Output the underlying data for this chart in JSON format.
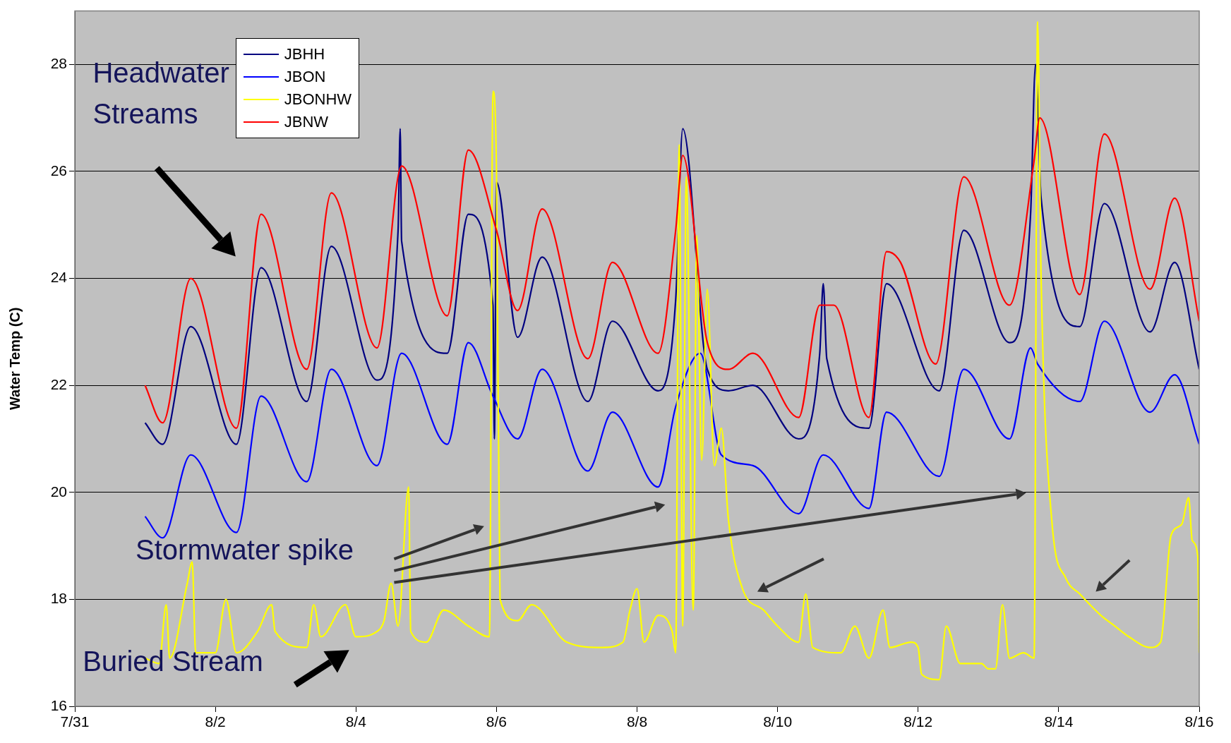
{
  "chart_data": {
    "type": "line",
    "ylabel": "Water Temp (C)",
    "xlim": [
      "--07-31",
      "--08-16"
    ],
    "xticks": [
      {
        "value": "--07-31",
        "label": "7/31"
      },
      {
        "value": "--08-02",
        "label": "8/2"
      },
      {
        "value": "--08-04",
        "label": "8/4"
      },
      {
        "value": "--08-06",
        "label": "8/6"
      },
      {
        "value": "--08-08",
        "label": "8/8"
      },
      {
        "value": "--08-10",
        "label": "8/10"
      },
      {
        "value": "--08-12",
        "label": "8/12"
      },
      {
        "value": "--08-14",
        "label": "8/14"
      },
      {
        "value": "--08-16",
        "label": "8/16"
      }
    ],
    "ylim": [
      16,
      29
    ],
    "yticks": [
      16,
      18,
      20,
      22,
      24,
      26,
      28
    ],
    "grid": "y",
    "legend": "top left",
    "marker": "none",
    "annotations": [
      "Headwater Streams",
      "Stormwater spike",
      "Buried Stream"
    ],
    "series": [
      {
        "name": "JBHH",
        "color": "#000080",
        "x": [
          "--08-01T00:00",
          "--08-01T06:00",
          "--08-01T15:36",
          "--08-02T07:12",
          "--08-02T15:36",
          "--08-03T07:12",
          "--08-03T15:36",
          "--08-04T07:12",
          "--08-04T14:24",
          "--08-04T15:07",
          "--08-04T15:36",
          "--08-05T07:12",
          "--08-05T14:24",
          "--08-05T22:48",
          "--08-05T23:17",
          "--08-06T00:00",
          "--08-06T07:12",
          "--08-06T15:36",
          "--08-07T07:12",
          "--08-07T15:36",
          "--08-08T07:12",
          "--08-08T13:12",
          "--08-08T15:36",
          "--08-09T00:00",
          "--08-09T07:12",
          "--08-09T15:36",
          "--08-10T07:12",
          "--08-10T14:24",
          "--08-10T15:36",
          "--08-10T16:48",
          "--08-11T07:12",
          "--08-11T13:12",
          "--08-12T07:12",
          "--08-12T15:36",
          "--08-13T07:12",
          "--08-13T14:24",
          "--08-13T16:05",
          "--08-13T18:00",
          "--08-14T07:12",
          "--08-14T15:36",
          "--08-15T07:12",
          "--08-15T15:36",
          "--08-16T00:00"
        ],
        "values": [
          21.3,
          20.9,
          23.1,
          20.9,
          24.2,
          21.7,
          24.6,
          22.1,
          24.9,
          26.8,
          24.7,
          22.6,
          25.2,
          23.5,
          21.0,
          25.8,
          22.9,
          24.4,
          21.7,
          23.2,
          21.9,
          23.6,
          26.8,
          22.3,
          21.9,
          22.0,
          21.0,
          22.6,
          23.9,
          22.5,
          21.2,
          23.9,
          21.9,
          24.9,
          22.8,
          25.2,
          28.0,
          25.5,
          23.1,
          25.4,
          23.0,
          24.3,
          22.3
        ]
      },
      {
        "name": "JBON",
        "color": "#0000ff",
        "x": [
          "--08-01T00:00",
          "--08-01T06:00",
          "--08-01T15:36",
          "--08-02T07:12",
          "--08-02T15:36",
          "--08-03T07:12",
          "--08-03T15:36",
          "--08-04T07:12",
          "--08-04T15:36",
          "--08-05T07:12",
          "--08-05T14:24",
          "--08-05T22:48",
          "--08-06T07:12",
          "--08-06T15:36",
          "--08-07T07:12",
          "--08-07T15:36",
          "--08-08T07:12",
          "--08-08T13:12",
          "--08-08T21:36",
          "--08-09T04:48",
          "--08-09T15:36",
          "--08-10T07:12",
          "--08-10T15:36",
          "--08-11T07:12",
          "--08-11T13:12",
          "--08-12T07:12",
          "--08-12T15:36",
          "--08-13T07:12",
          "--08-13T14:24",
          "--08-13T16:48",
          "--08-14T07:12",
          "--08-14T15:36",
          "--08-15T07:12",
          "--08-15T15:36",
          "--08-16T00:00"
        ],
        "values": [
          19.55,
          19.15,
          20.7,
          19.25,
          21.8,
          20.2,
          22.3,
          20.5,
          22.6,
          20.9,
          22.8,
          21.8,
          21.0,
          22.3,
          20.4,
          21.5,
          20.1,
          21.6,
          22.6,
          20.7,
          20.5,
          19.6,
          20.7,
          19.7,
          21.5,
          20.3,
          22.3,
          21.0,
          22.7,
          22.4,
          21.7,
          23.2,
          21.5,
          22.2,
          20.9
        ]
      },
      {
        "name": "JBONHW",
        "color": "#ffff00",
        "x": [
          "--08-01T00:00",
          "--08-01T04:48",
          "--08-01T07:12",
          "--08-01T08:24",
          "--08-01T14:24",
          "--08-01T16:05",
          "--08-01T17:17",
          "--08-02T00:00",
          "--08-02T03:36",
          "--08-02T07:12",
          "--08-02T14:24",
          "--08-02T19:12",
          "--08-02T20:24",
          "--08-03T07:12",
          "--08-03T09:36",
          "--08-03T12:00",
          "--08-03T20:24",
          "--08-04T00:00",
          "--08-04T07:12",
          "--08-04T09:36",
          "--08-04T12:00",
          "--08-04T14:24",
          "--08-04T18:00",
          "--08-04T18:43",
          "--08-05T00:00",
          "--08-05T06:00",
          "--08-05T14:24",
          "--08-05T21:36",
          "--08-05T22:48",
          "--08-06T00:00",
          "--08-06T01:12",
          "--08-06T07:12",
          "--08-06T12:00",
          "--08-07T00:00",
          "--08-07T12:00",
          "--08-07T19:12",
          "--08-07T21:36",
          "--08-08T00:00",
          "--08-08T02:24",
          "--08-08T07:12",
          "--08-08T12:00",
          "--08-08T13:12",
          "--08-08T14:24",
          "--08-08T15:36",
          "--08-08T16:48",
          "--08-08T19:12",
          "--08-08T20:24",
          "--08-08T22:05",
          "--08-09T00:00",
          "--08-09T02:24",
          "--08-09T04:48",
          "--08-09T07:12",
          "--08-09T12:00",
          "--08-09T19:12",
          "--08-10T00:00",
          "--08-10T07:12",
          "--08-10T09:36",
          "--08-10T12:00",
          "--08-10T21:36",
          "--08-11T02:24",
          "--08-11T07:12",
          "--08-11T12:00",
          "--08-11T14:24",
          "--08-11T21:36",
          "--08-12T00:00",
          "--08-12T01:12",
          "--08-12T07:12",
          "--08-12T09:36",
          "--08-12T14:24",
          "--08-12T21:36",
          "--08-13T00:00",
          "--08-13T02:24",
          "--08-13T04:48",
          "--08-13T07:12",
          "--08-13T12:00",
          "--08-13T15:36",
          "--08-13T16:48",
          "--08-13T18:00",
          "--08-13T21:36",
          "--08-14T02:24",
          "--08-14T07:12",
          "--08-14T14:24",
          "--08-14T19:12",
          "--08-15T00:00",
          "--08-15T07:12",
          "--08-15T10:48",
          "--08-15T14:24",
          "--08-15T18:00",
          "--08-15T20:24",
          "--08-15T21:36",
          "--08-15T23:31",
          "--08-16T00:00"
        ],
        "values": [
          16.9,
          16.8,
          17.9,
          16.9,
          18.3,
          18.7,
          17.0,
          17.0,
          18.0,
          17.0,
          17.4,
          17.9,
          17.4,
          17.1,
          17.9,
          17.3,
          17.9,
          17.3,
          17.4,
          17.6,
          18.3,
          17.5,
          20.1,
          17.4,
          17.2,
          17.8,
          17.5,
          17.3,
          27.5,
          26.0,
          18.0,
          17.6,
          17.9,
          17.2,
          17.1,
          17.2,
          17.8,
          18.2,
          17.2,
          17.7,
          17.4,
          17.0,
          26.5,
          17.5,
          25.9,
          17.8,
          24.8,
          20.6,
          23.8,
          20.5,
          21.2,
          19.5,
          18.2,
          17.8,
          17.5,
          17.2,
          18.1,
          17.1,
          17.0,
          17.5,
          16.9,
          17.8,
          17.1,
          17.2,
          17.1,
          16.6,
          16.5,
          17.5,
          16.8,
          16.8,
          16.7,
          16.7,
          17.9,
          16.9,
          17.0,
          16.9,
          28.8,
          24.0,
          19.5,
          18.4,
          18.1,
          17.7,
          17.5,
          17.3,
          17.1,
          17.2,
          19.2,
          19.4,
          19.9,
          19.1,
          18.8,
          17.0
        ]
      },
      {
        "name": "JBNW",
        "color": "#ff0000",
        "x": [
          "--08-01T00:00",
          "--08-01T06:00",
          "--08-01T15:36",
          "--08-02T07:12",
          "--08-02T15:36",
          "--08-03T07:12",
          "--08-03T15:36",
          "--08-04T07:12",
          "--08-04T15:36",
          "--08-05T07:12",
          "--08-05T14:24",
          "--08-06T00:00",
          "--08-06T07:12",
          "--08-06T15:36",
          "--08-07T07:12",
          "--08-07T15:36",
          "--08-08T07:12",
          "--08-08T13:12",
          "--08-08T15:36",
          "--08-09T00:00",
          "--08-09T07:12",
          "--08-09T15:36",
          "--08-10T07:12",
          "--08-10T14:24",
          "--08-10T19:12",
          "--08-11T07:12",
          "--08-11T13:12",
          "--08-11T18:00",
          "--08-12T06:00",
          "--08-12T15:36",
          "--08-13T07:12",
          "--08-13T15:36",
          "--08-13T17:31",
          "--08-14T07:12",
          "--08-14T15:36",
          "--08-15T07:12",
          "--08-15T15:36",
          "--08-16T00:00"
        ],
        "values": [
          22.0,
          21.3,
          24.0,
          21.2,
          25.2,
          22.3,
          25.6,
          22.7,
          26.1,
          23.3,
          26.4,
          24.9,
          23.4,
          25.3,
          22.5,
          24.3,
          22.6,
          24.9,
          26.3,
          22.8,
          22.3,
          22.6,
          21.4,
          23.5,
          23.5,
          21.4,
          24.5,
          24.3,
          22.4,
          25.9,
          23.5,
          26.2,
          27.0,
          23.7,
          26.7,
          23.8,
          25.5,
          23.2
        ]
      }
    ]
  }
}
